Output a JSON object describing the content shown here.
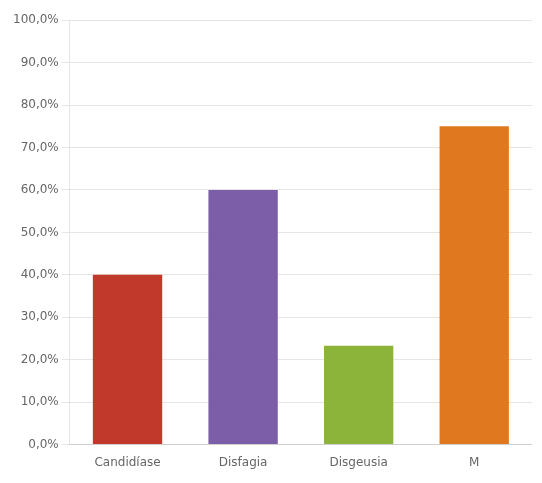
{
  "chart_data": {
    "type": "bar",
    "categories": [
      "Candidíase",
      "Disfagia",
      "Disgeusia",
      "M"
    ],
    "values": [
      40.0,
      60.0,
      23.3,
      75.0
    ],
    "colors": [
      "#c0392b",
      "#7b5ea7",
      "#8db43a",
      "#e07820"
    ],
    "ylim": [
      0,
      100
    ],
    "yticks": [
      {
        "value": 0,
        "label": "0,0%"
      },
      {
        "value": 10,
        "label": "10,0%"
      },
      {
        "value": 20,
        "label": "20,0%"
      },
      {
        "value": 30,
        "label": "30,0%"
      },
      {
        "value": 40,
        "label": "40,0%"
      },
      {
        "value": 50,
        "label": "50,0%"
      },
      {
        "value": 60,
        "label": "60,0%"
      },
      {
        "value": 70,
        "label": "70,0%"
      },
      {
        "value": 80,
        "label": "80,0%"
      },
      {
        "value": 90,
        "label": "90,0%"
      },
      {
        "value": 100,
        "label": "100,0%"
      }
    ],
    "grid": true
  }
}
